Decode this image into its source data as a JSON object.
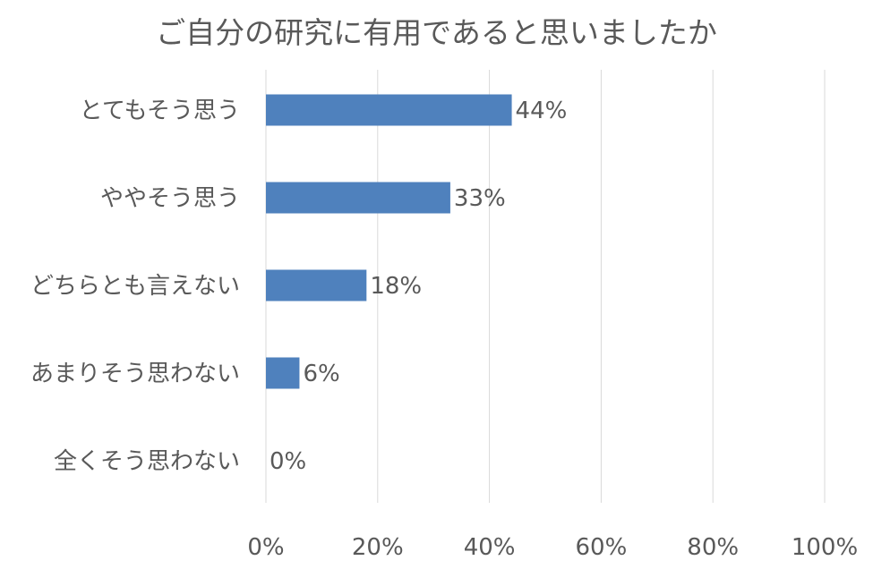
{
  "chart_data": {
    "type": "bar",
    "orientation": "horizontal",
    "title": "ご自分の研究に有用であると思いましたか",
    "categories": [
      "とてもそう思う",
      "ややそう思う",
      "どちらとも言えない",
      "あまりそう思わない",
      "全くそう思わない"
    ],
    "values": [
      44,
      33,
      18,
      6,
      0
    ],
    "value_labels": [
      "44%",
      "33%",
      "18%",
      "6%",
      "0%"
    ],
    "xlim": [
      0,
      100
    ],
    "x_ticks": [
      0,
      20,
      40,
      60,
      80,
      100
    ],
    "x_tick_labels": [
      "0%",
      "20%",
      "40%",
      "60%",
      "80%",
      "100%"
    ],
    "grid": "vertical",
    "legend": "none",
    "bar_color": "#4f81bd",
    "grid_color": "#d9d9d9",
    "text_color": "#595959"
  }
}
